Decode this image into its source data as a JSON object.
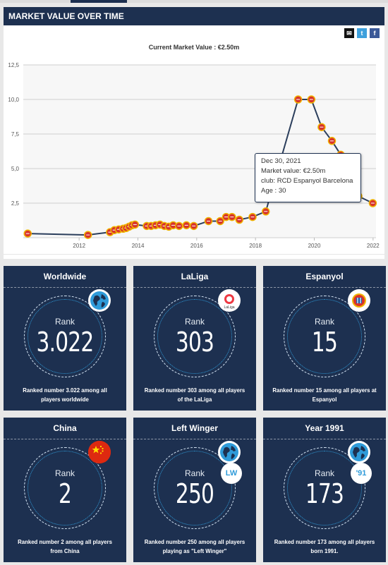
{
  "header": {
    "title": "MARKET VALUE OVER TIME"
  },
  "share": {
    "icons": [
      "email-icon",
      "twitter-icon",
      "facebook-icon"
    ]
  },
  "chart_title": "Current Market Value : €2.50m",
  "tooltip": {
    "date": "Dec 30, 2021",
    "value": "Market value: €2.50m",
    "club": "club: RCD Espanyol Barcelona",
    "age": "Age : 30"
  },
  "chart_data": {
    "type": "line",
    "title": "Current Market Value : €2.50m",
    "xlabel": "",
    "ylabel": "",
    "x_ticks": [
      "2012",
      "2014",
      "2016",
      "2018",
      "2020",
      "2022"
    ],
    "y_ticks": [
      "2,5",
      "5,0",
      "7,5",
      "10,0",
      "12,5"
    ],
    "xlim": [
      2010.1,
      2022.1
    ],
    "ylim": [
      0,
      12.5
    ],
    "grid": true,
    "series": [
      {
        "x": [
          2010.25,
          2012.3,
          2013.05,
          2013.2,
          2013.35,
          2013.5,
          2013.6,
          2013.7,
          2013.8,
          2013.9,
          2014.3,
          2014.45,
          2014.6,
          2014.75,
          2014.9,
          2015.05,
          2015.2,
          2015.4,
          2015.65,
          2015.9,
          2016.4,
          2016.8,
          2017.0,
          2017.2,
          2017.45,
          2017.9,
          2018.35,
          2019.45,
          2019.9,
          2020.25,
          2020.6,
          2020.9,
          2021.5,
          2021.99
        ],
        "values": [
          0.3,
          0.2,
          0.4,
          0.55,
          0.6,
          0.65,
          0.7,
          0.8,
          0.9,
          0.95,
          0.85,
          0.85,
          0.9,
          0.95,
          0.85,
          0.8,
          0.9,
          0.85,
          0.9,
          0.85,
          1.2,
          1.2,
          1.5,
          1.5,
          1.3,
          1.5,
          1.9,
          10.0,
          10.0,
          8.0,
          7.0,
          6.0,
          3.0,
          2.5
        ]
      }
    ]
  },
  "cards": [
    {
      "title": "Worldwide",
      "rank_label": "Rank",
      "rank": "3.022",
      "desc": "Ranked number 3.022 among all players worldwide",
      "icon": "globe-icon",
      "tag": ""
    },
    {
      "title": "LaLiga",
      "rank_label": "Rank",
      "rank": "303",
      "desc": "Ranked number 303 among all players of the LaLiga",
      "icon": "laliga-logo-icon",
      "tag": ""
    },
    {
      "title": "Espanyol",
      "rank_label": "Rank",
      "rank": "15",
      "desc": "Ranked number 15 among all players at Espanyol",
      "icon": "espanyol-crest-icon",
      "tag": ""
    },
    {
      "title": "China",
      "rank_label": "Rank",
      "rank": "2",
      "desc": "Ranked number 2 among all players from China",
      "icon": "china-flag-icon",
      "tag": ""
    },
    {
      "title": "Left Winger",
      "rank_label": "Rank",
      "rank": "250",
      "desc": "Ranked number 250 among all players playing as \"Left Winger\"",
      "icon": "globe-icon",
      "tag": "LW"
    },
    {
      "title": "Year 1991",
      "rank_label": "Rank",
      "rank": "173",
      "desc": "Ranked number 173 among all players born 1991.",
      "icon": "globe-icon",
      "tag": "'91"
    }
  ],
  "colors": {
    "navy": "#1d3050",
    "accent": "#2f9bd9",
    "line": "#2b3e5c",
    "marker": "#d8342b"
  }
}
